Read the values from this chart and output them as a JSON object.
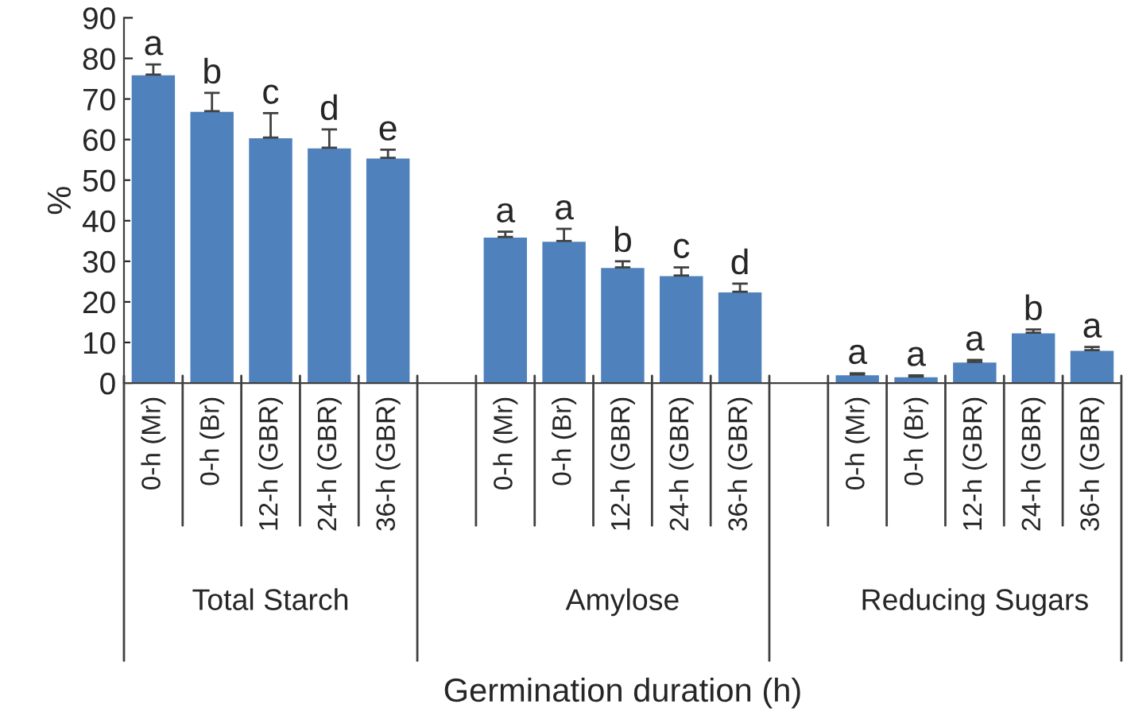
{
  "chart_data": {
    "type": "bar",
    "xlabel": "Germination duration (h)",
    "ylabel": "%",
    "categories": [
      "0-h (Mr)",
      "0-h (Br)",
      "12-h (GBR)",
      "24-h (GBR)",
      "36-h (GBR)",
      null,
      "0-h (Mr)",
      "0-h (Br)",
      "12-h (GBR)",
      "24-h (GBR)",
      "36-h (GBR)",
      null,
      "0-h (Mr)",
      "0-h (Br)",
      "12-h (GBR)",
      "24-h (GBR)",
      "36-h (GBR)"
    ],
    "values": [
      76,
      67,
      60.5,
      58,
      55.5,
      null,
      36,
      35,
      28.5,
      26.5,
      22.5,
      null,
      2.1,
      1.6,
      5.2,
      12.4,
      8.1
    ],
    "errors": [
      [
        76,
        78.5
      ],
      [
        67,
        71.5
      ],
      [
        60.5,
        66.5
      ],
      [
        58,
        62.5
      ],
      [
        55.5,
        57.5
      ],
      null,
      [
        36,
        37.3
      ],
      [
        35,
        38
      ],
      [
        28.5,
        30
      ],
      [
        26.5,
        28.5
      ],
      [
        22.5,
        24.5
      ],
      null,
      [
        2.1,
        2.4
      ],
      [
        1.6,
        1.9
      ],
      [
        5.2,
        5.7
      ],
      [
        12.4,
        13.2
      ],
      [
        8.1,
        8.9
      ]
    ],
    "value_labels": [
      "a",
      "b",
      "c",
      "d",
      "e",
      null,
      "a",
      "a",
      "b",
      "c",
      "d",
      null,
      "a",
      "a",
      "a",
      "b",
      "a"
    ],
    "color": "#4f81bd",
    "ylim": [
      0,
      90
    ],
    "yticks": [
      0,
      10,
      20,
      30,
      40,
      50,
      60,
      70,
      80,
      90
    ],
    "annotations": [
      "Total Starch",
      "Amylose",
      "Reducing Sugars"
    ],
    "grid": false
  }
}
